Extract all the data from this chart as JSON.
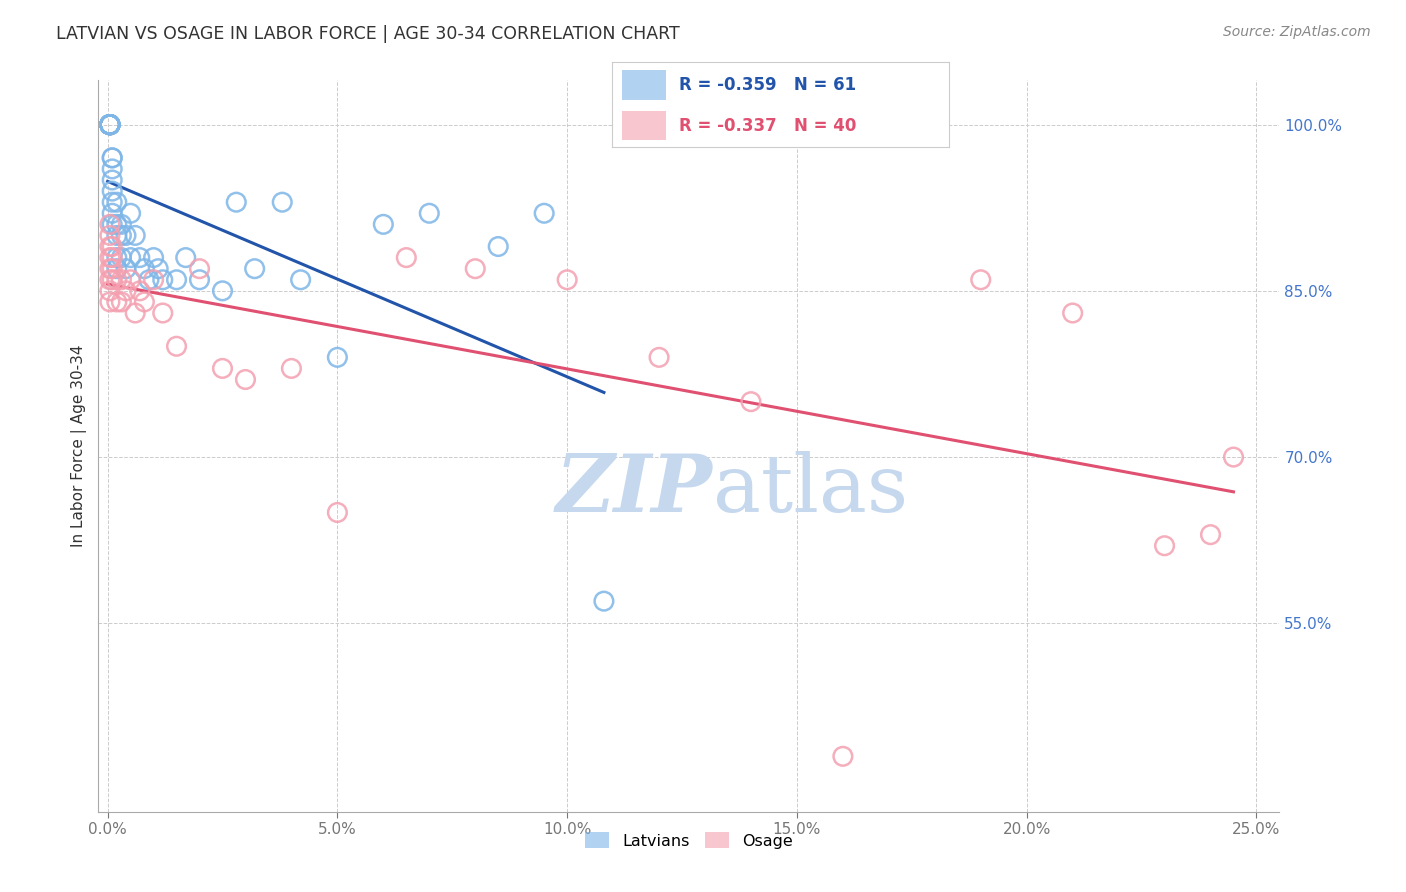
{
  "title": "LATVIAN VS OSAGE IN LABOR FORCE | AGE 30-34 CORRELATION CHART",
  "source": "Source: ZipAtlas.com",
  "ylabel": "In Labor Force | Age 30-34",
  "xlim": [
    -0.002,
    0.255
  ],
  "ylim": [
    0.38,
    1.04
  ],
  "xticks": [
    0.0,
    0.05,
    0.1,
    0.15,
    0.2,
    0.25
  ],
  "xticklabels": [
    "0.0%",
    "5.0%",
    "10.0%",
    "15.0%",
    "20.0%",
    "25.0%"
  ],
  "yticks_right": [
    1.0,
    0.85,
    0.7,
    0.55
  ],
  "ytick_labels_right": [
    "100.0%",
    "85.0%",
    "70.0%",
    "55.0%"
  ],
  "legend_labels": [
    "Latvians",
    "Osage"
  ],
  "legend_R": [
    -0.359,
    -0.337
  ],
  "legend_N": [
    61,
    40
  ],
  "blue_color": "#7EB6E8",
  "pink_color": "#F4A0B0",
  "blue_line_color": "#2255AA",
  "pink_line_color": "#E05070",
  "grid_color": "#CCCCCC",
  "watermark_color": "#C5D8EE",
  "background_color": "#FFFFFF",
  "latvian_x": [
    0.0005,
    0.0005,
    0.0005,
    0.0005,
    0.0005,
    0.0005,
    0.0005,
    0.0005,
    0.0005,
    0.0005,
    0.0005,
    0.0005,
    0.0005,
    0.0005,
    0.0005,
    0.0005,
    0.0005,
    0.0005,
    0.0005,
    0.0005,
    0.001,
    0.001,
    0.001,
    0.001,
    0.001,
    0.001,
    0.001,
    0.001,
    0.002,
    0.002,
    0.002,
    0.002,
    0.002,
    0.003,
    0.003,
    0.003,
    0.004,
    0.004,
    0.005,
    0.005,
    0.006,
    0.007,
    0.008,
    0.009,
    0.01,
    0.011,
    0.012,
    0.015,
    0.017,
    0.02,
    0.025,
    0.028,
    0.032,
    0.038,
    0.042,
    0.05,
    0.06,
    0.07,
    0.085,
    0.095,
    0.108
  ],
  "latvian_y": [
    1.0,
    1.0,
    1.0,
    1.0,
    1.0,
    1.0,
    1.0,
    1.0,
    1.0,
    1.0,
    1.0,
    1.0,
    1.0,
    1.0,
    1.0,
    1.0,
    1.0,
    1.0,
    1.0,
    1.0,
    0.97,
    0.97,
    0.96,
    0.95,
    0.94,
    0.93,
    0.92,
    0.91,
    0.93,
    0.91,
    0.9,
    0.88,
    0.87,
    0.91,
    0.9,
    0.88,
    0.9,
    0.87,
    0.92,
    0.88,
    0.9,
    0.88,
    0.87,
    0.86,
    0.88,
    0.87,
    0.86,
    0.86,
    0.88,
    0.86,
    0.85,
    0.93,
    0.87,
    0.93,
    0.86,
    0.79,
    0.91,
    0.92,
    0.89,
    0.92,
    0.57
  ],
  "osage_x": [
    0.0005,
    0.0005,
    0.0005,
    0.0005,
    0.0005,
    0.0005,
    0.0005,
    0.0005,
    0.001,
    0.001,
    0.001,
    0.001,
    0.002,
    0.002,
    0.003,
    0.003,
    0.004,
    0.005,
    0.006,
    0.007,
    0.008,
    0.01,
    0.012,
    0.015,
    0.02,
    0.025,
    0.03,
    0.04,
    0.05,
    0.065,
    0.08,
    0.1,
    0.12,
    0.14,
    0.16,
    0.19,
    0.21,
    0.23,
    0.24,
    0.245
  ],
  "osage_y": [
    0.91,
    0.9,
    0.89,
    0.88,
    0.87,
    0.86,
    0.85,
    0.84,
    0.89,
    0.88,
    0.87,
    0.86,
    0.86,
    0.84,
    0.86,
    0.84,
    0.85,
    0.86,
    0.83,
    0.85,
    0.84,
    0.86,
    0.83,
    0.8,
    0.87,
    0.78,
    0.77,
    0.78,
    0.65,
    0.88,
    0.87,
    0.86,
    0.79,
    0.75,
    0.43,
    0.86,
    0.83,
    0.62,
    0.63,
    0.7
  ]
}
